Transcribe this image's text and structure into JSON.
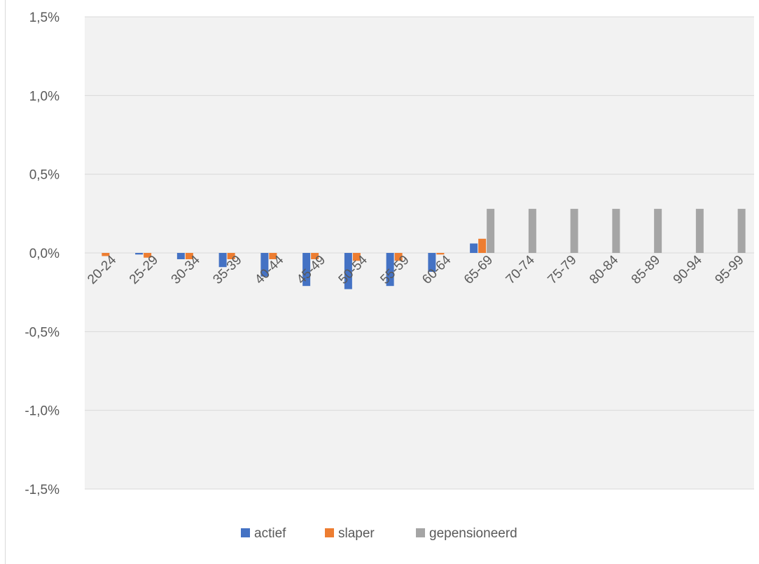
{
  "chart_data": {
    "type": "bar",
    "title": "",
    "xlabel": "",
    "ylabel": "",
    "categories": [
      "20-24",
      "25-29",
      "30-34",
      "35-39",
      "40-44",
      "45-49",
      "50-54",
      "55-59",
      "60-64",
      "65-69",
      "70-74",
      "75-79",
      "80-84",
      "85-89",
      "90-94",
      "95-99"
    ],
    "series": [
      {
        "name": "actief",
        "color": "#4472c4",
        "values": [
          0.0,
          -0.01,
          -0.04,
          -0.09,
          -0.15,
          -0.21,
          -0.23,
          -0.21,
          -0.12,
          0.06,
          0,
          0,
          0,
          0,
          0,
          0
        ]
      },
      {
        "name": "slaper",
        "color": "#ed7d31",
        "values": [
          -0.02,
          -0.03,
          -0.04,
          -0.04,
          -0.04,
          -0.04,
          -0.05,
          -0.05,
          -0.01,
          0.09,
          0,
          0,
          0,
          0,
          0,
          0
        ]
      },
      {
        "name": "gepensioneerd",
        "color": "#a5a5a5",
        "values": [
          0,
          0,
          0,
          0,
          0,
          0,
          0,
          0,
          0,
          0.28,
          0.28,
          0.28,
          0.28,
          0.28,
          0.28,
          0.28
        ]
      }
    ],
    "ylim": [
      -1.5,
      1.5
    ],
    "yticks": [
      "1,5%",
      "1,0%",
      "0,5%",
      "0,0%",
      "-0,5%",
      "-1,0%",
      "-1,5%"
    ],
    "ytick_values": [
      1.5,
      1.0,
      0.5,
      0.0,
      -0.5,
      -1.0,
      -1.5
    ],
    "grid": true,
    "plot_background": "#f2f2f2",
    "legend_position": "bottom"
  }
}
